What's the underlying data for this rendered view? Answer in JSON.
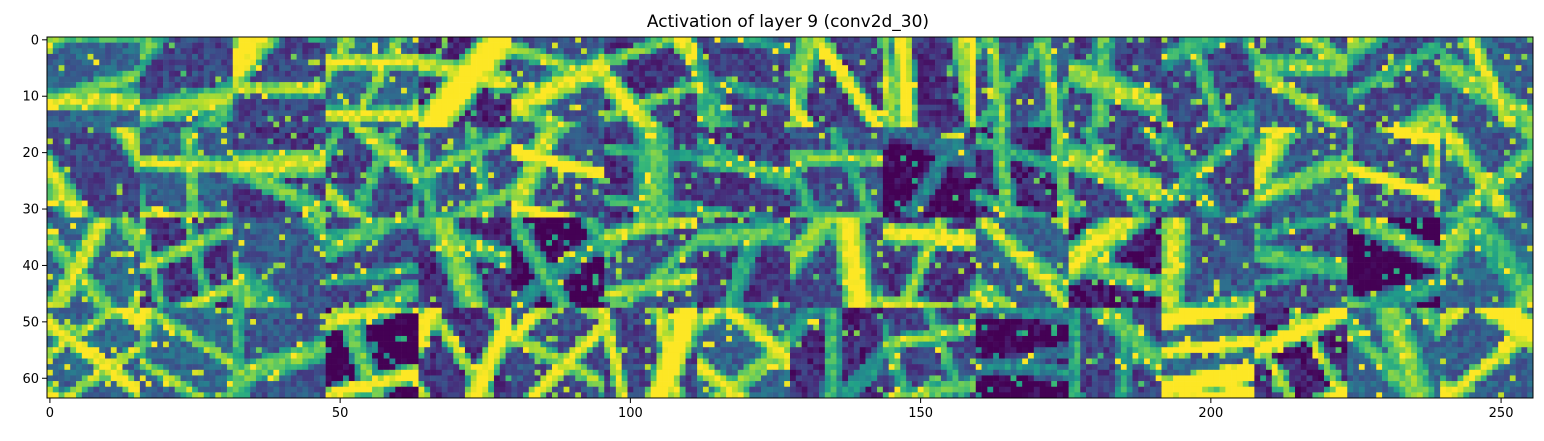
{
  "chart_data": {
    "type": "heatmap",
    "title": "Activation of layer 9 (conv2d_30)",
    "xlabel": "",
    "ylabel": "",
    "colormap": "viridis",
    "colors": {
      "low": "#440154",
      "mid": "#21918c",
      "high": "#fde725",
      "frame": "#000000"
    },
    "grid_rows": 64,
    "grid_cols": 256,
    "tile_grid": {
      "rows": 4,
      "cols": 16,
      "tile_size": 16
    },
    "value_range": [
      0,
      1
    ],
    "xlim": [
      -0.5,
      255.5
    ],
    "ylim": [
      63.5,
      -0.5
    ],
    "x_ticks": [
      0,
      50,
      100,
      150,
      200,
      250
    ],
    "y_ticks": [
      0,
      10,
      20,
      30,
      40,
      50,
      60
    ],
    "x_tick_labels": [
      "0",
      "50",
      "100",
      "150",
      "200",
      "250"
    ],
    "y_tick_labels": [
      "0",
      "10",
      "20",
      "30",
      "40",
      "50",
      "60"
    ],
    "grid": false,
    "legend": "none"
  }
}
